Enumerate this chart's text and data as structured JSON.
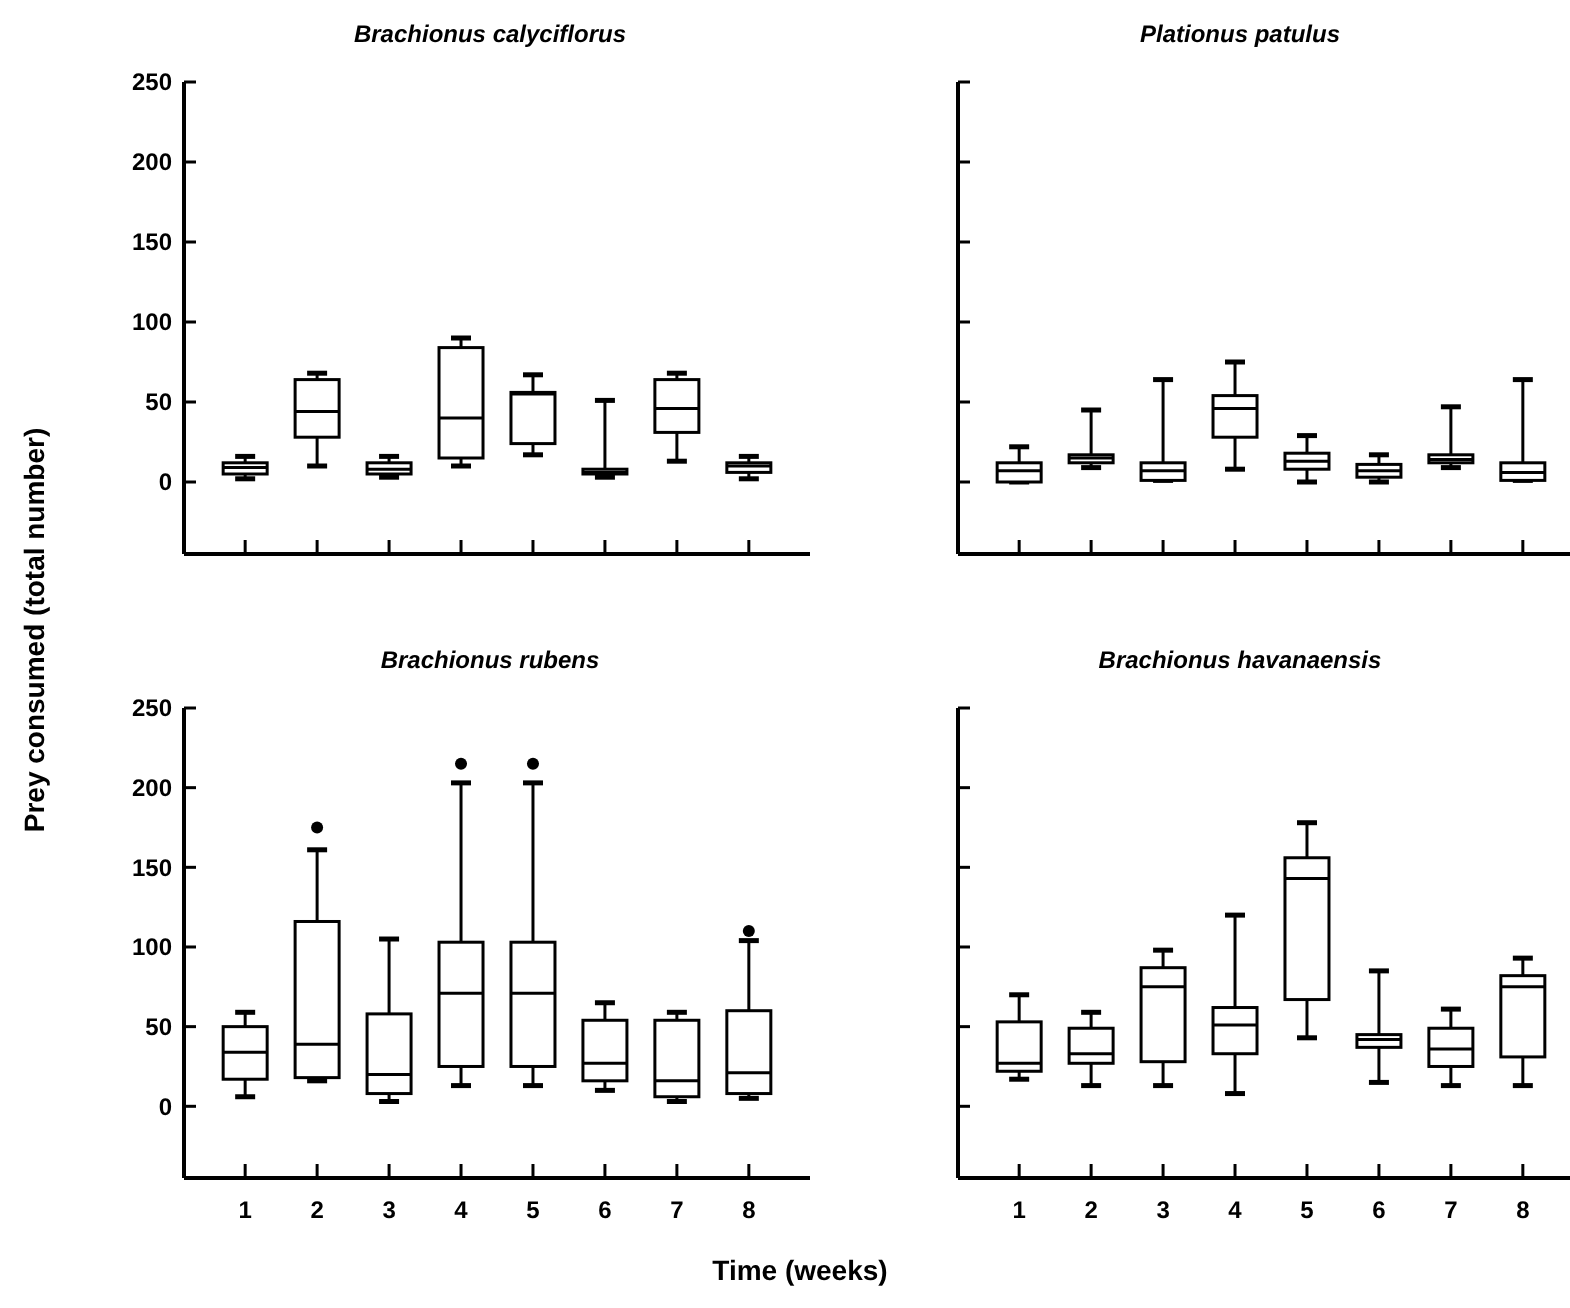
{
  "chart_data": [
    {
      "type": "box",
      "title": "Brachionus calyciflorus",
      "ylabel": "Prey consumed (total number)",
      "categories": [
        "1",
        "2",
        "3",
        "4",
        "5",
        "6",
        "7",
        "8"
      ],
      "ylim": [
        -45,
        250
      ],
      "yticks": [
        0,
        50,
        100,
        150,
        200,
        250
      ],
      "tick_labels": "y",
      "color": "#000000",
      "boxes": [
        {
          "low": 2,
          "q1": 5,
          "median": 9,
          "q3": 12,
          "high": 16
        },
        {
          "low": 10,
          "q1": 28,
          "median": 44,
          "q3": 64,
          "high": 68
        },
        {
          "low": 3,
          "q1": 5,
          "median": 8,
          "q3": 12,
          "high": 16
        },
        {
          "low": 10,
          "q1": 15,
          "median": 40,
          "q3": 84,
          "high": 90
        },
        {
          "low": 17,
          "q1": 24,
          "median": 55,
          "q3": 56,
          "high": 67
        },
        {
          "low": 3,
          "q1": 5,
          "median": 6,
          "q3": 8,
          "high": 51
        },
        {
          "low": 13,
          "q1": 31,
          "median": 46,
          "q3": 64,
          "high": 68
        },
        {
          "low": 2,
          "q1": 6,
          "median": 10,
          "q3": 12,
          "high": 16
        }
      ]
    },
    {
      "type": "box",
      "title": "Plationus patulus",
      "categories": [
        "1",
        "2",
        "3",
        "4",
        "5",
        "6",
        "7",
        "8"
      ],
      "ylim": [
        -45,
        250
      ],
      "yticks": [
        0,
        50,
        100,
        150,
        200,
        250
      ],
      "tick_labels": false,
      "color": "#000000",
      "boxes": [
        {
          "low": 0,
          "q1": 0,
          "median": 7,
          "q3": 12,
          "high": 22
        },
        {
          "low": 9,
          "q1": 12,
          "median": 15,
          "q3": 17,
          "high": 45
        },
        {
          "low": 1,
          "q1": 1,
          "median": 7,
          "q3": 12,
          "high": 64
        },
        {
          "low": 8,
          "q1": 28,
          "median": 46,
          "q3": 54,
          "high": 75
        },
        {
          "low": 0,
          "q1": 8,
          "median": 13,
          "q3": 18,
          "high": 29
        },
        {
          "low": 0,
          "q1": 3,
          "median": 7,
          "q3": 11,
          "high": 17
        },
        {
          "low": 9,
          "q1": 12,
          "median": 14,
          "q3": 17,
          "high": 47
        },
        {
          "low": 1,
          "q1": 1,
          "median": 6,
          "q3": 12,
          "high": 64
        }
      ]
    },
    {
      "type": "box",
      "title": "Brachionus rubens",
      "xlabel": "Time (weeks)",
      "categories": [
        "1",
        "2",
        "3",
        "4",
        "5",
        "6",
        "7",
        "8"
      ],
      "ylim": [
        -45,
        250
      ],
      "yticks": [
        0,
        50,
        100,
        150,
        200,
        250
      ],
      "color": "#000000",
      "boxes": [
        {
          "low": 6,
          "q1": 17,
          "median": 34,
          "q3": 50,
          "high": 59
        },
        {
          "low": 16,
          "q1": 18,
          "median": 39,
          "q3": 116,
          "high": 161,
          "outliers": [
            175
          ]
        },
        {
          "low": 3,
          "q1": 8,
          "median": 20,
          "q3": 58,
          "high": 105
        },
        {
          "low": 13,
          "q1": 25,
          "median": 71,
          "q3": 103,
          "high": 203,
          "outliers": [
            215
          ]
        },
        {
          "low": 13,
          "q1": 25,
          "median": 71,
          "q3": 103,
          "high": 203,
          "outliers": [
            215
          ]
        },
        {
          "low": 10,
          "q1": 16,
          "median": 27,
          "q3": 54,
          "high": 65
        },
        {
          "low": 3,
          "q1": 6,
          "median": 16,
          "q3": 54,
          "high": 59
        },
        {
          "low": 5,
          "q1": 8,
          "median": 21,
          "q3": 60,
          "high": 104,
          "outliers": [
            110
          ]
        }
      ]
    },
    {
      "type": "box",
      "title": "Brachionus havanaensis",
      "categories": [
        "1",
        "2",
        "3",
        "4",
        "5",
        "6",
        "7",
        "8"
      ],
      "ylim": [
        -45,
        250
      ],
      "yticks": [
        0,
        50,
        100,
        150,
        200,
        250
      ],
      "tick_labels": "x",
      "color": "#000000",
      "boxes": [
        {
          "low": 17,
          "q1": 22,
          "median": 27,
          "q3": 53,
          "high": 70
        },
        {
          "low": 13,
          "q1": 27,
          "median": 33,
          "q3": 49,
          "high": 59
        },
        {
          "low": 13,
          "q1": 28,
          "median": 75,
          "q3": 87,
          "high": 98
        },
        {
          "low": 8,
          "q1": 33,
          "median": 51,
          "q3": 62,
          "high": 120
        },
        {
          "low": 43,
          "q1": 67,
          "median": 143,
          "q3": 156,
          "high": 178
        },
        {
          "low": 15,
          "q1": 37,
          "median": 42,
          "q3": 45,
          "high": 85
        },
        {
          "low": 13,
          "q1": 25,
          "median": 36,
          "q3": 49,
          "high": 61
        },
        {
          "low": 13,
          "q1": 31,
          "median": 75,
          "q3": 82,
          "high": 93
        }
      ]
    }
  ]
}
